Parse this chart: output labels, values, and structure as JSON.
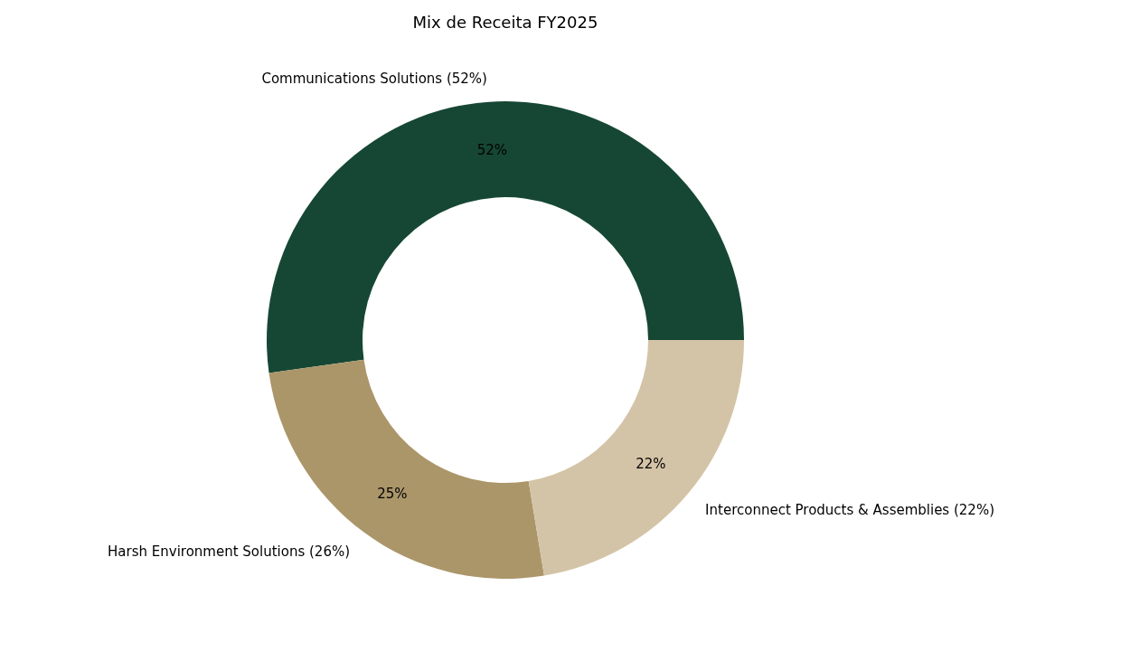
{
  "chart_data": {
    "type": "donut",
    "title": "Mix de Receita FY2025",
    "categories": [
      "Communications Solutions (52%)",
      "Harsh Environment Solutions (26%)",
      "Interconnect Products & Assemblies (22%)"
    ],
    "values": [
      52.2,
      25.4,
      22.4
    ],
    "value_labels": [
      "52%",
      "25%",
      "22%"
    ],
    "colors": [
      "#164734",
      "#ab966a",
      "#d4c4a7"
    ]
  }
}
